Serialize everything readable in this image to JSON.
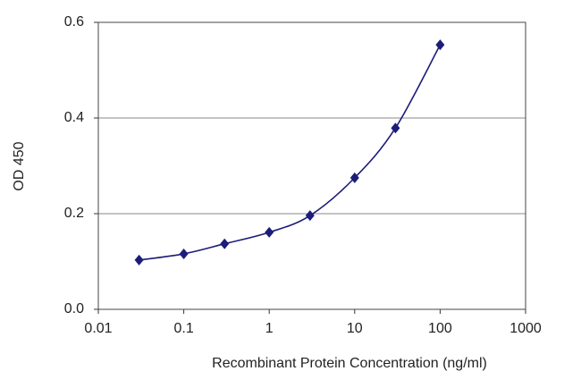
{
  "chart_data": {
    "type": "line",
    "x_label": "Recombinant Protein Concentration (ng/ml)",
    "y_label": "OD 450",
    "x": [
      0.03,
      0.1,
      0.3,
      1,
      3,
      10,
      30,
      100
    ],
    "values": [
      0.103,
      0.116,
      0.137,
      0.161,
      0.196,
      0.275,
      0.379,
      0.553
    ],
    "color": "#1c1c7a",
    "xscale": "log",
    "xlim": [
      0.01,
      1000
    ],
    "xticks": [
      0.01,
      0.1,
      1,
      10,
      100,
      1000
    ],
    "ylim": [
      0,
      0.6
    ],
    "yticks": [
      {
        "value": 0,
        "label": "0.0"
      },
      0.2,
      0.4,
      0.6
    ],
    "grid": true
  }
}
